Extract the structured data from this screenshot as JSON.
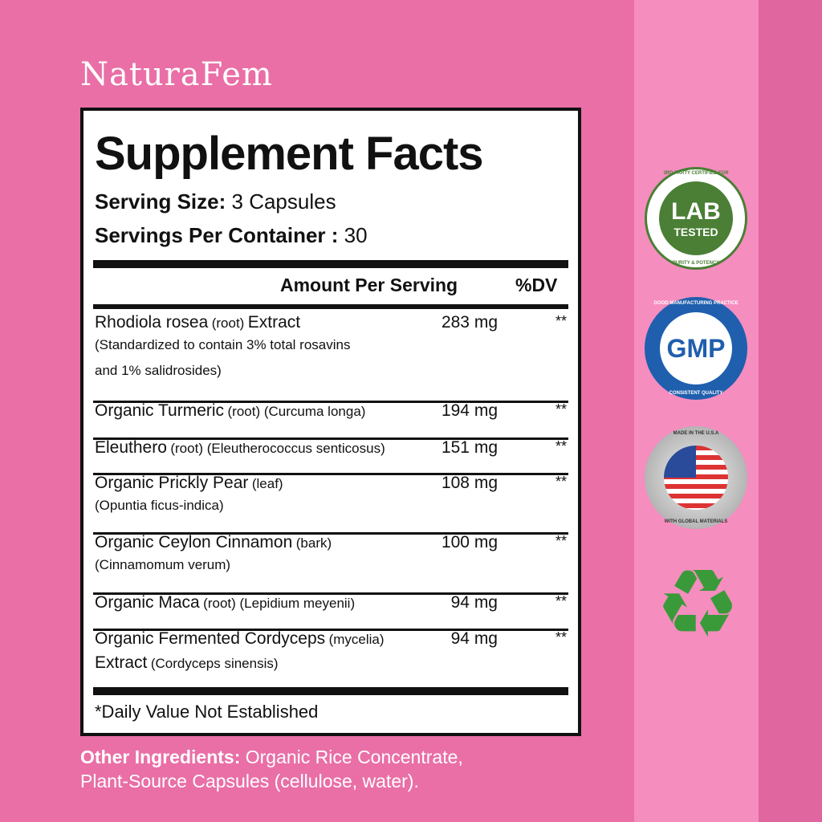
{
  "brand": "NaturaFem",
  "facts": {
    "title": "Supplement Facts",
    "serving_size_label": "Serving Size:",
    "serving_size": "3 Capsules",
    "servings_label": "Servings Per Container :",
    "servings": "30",
    "amount_header": "Amount Per Serving",
    "dv_header": "%DV",
    "rows": [
      {
        "name": "Rhodiola rosea",
        "qual": "(root)",
        "name2": "Extract",
        "sub": "(Standardized to contain 3% total rosavins",
        "sub2": "and 1% salidrosides)",
        "amount": "283 mg",
        "dv": "**"
      },
      {
        "name": "Organic Turmeric",
        "qual": "(root) (Curcuma longa)",
        "amount": "194 mg",
        "dv": "**"
      },
      {
        "name": "Eleuthero",
        "qual": "(root) (Eleutherococcus senticosus)",
        "amount": "151 mg",
        "dv": "**"
      },
      {
        "name": "Organic Prickly Pear",
        "qual": "(leaf)",
        "sub": "(Opuntia ficus-indica)",
        "amount": "108 mg",
        "dv": "**"
      },
      {
        "name": "Organic Ceylon Cinnamon",
        "qual": "(bark)",
        "sub": "(Cinnamomum verum)",
        "amount": "100 mg",
        "dv": "**"
      },
      {
        "name": "Organic Maca",
        "qual": "(root) (Lepidium meyenii)",
        "amount": "94 mg",
        "dv": "**"
      },
      {
        "name": "Organic Fermented Cordyceps",
        "qual": "(mycelia)",
        "name2": "Extract",
        "sub": "(Cordyceps sinensis)",
        "amount": "94 mg",
        "dv": "**"
      }
    ],
    "footnote": "*Daily Value Not Established"
  },
  "other": {
    "label": "Other Ingredients:",
    "text1": "Organic Rice Concentrate,",
    "text2": "Plant-Source Capsules (cellulose, water)."
  },
  "badges": {
    "lab": {
      "top": "3RD PARTY CERTIFIED FOR",
      "main": "LAB",
      "sub": "TESTED",
      "bottom": "PURITY & POTENCY"
    },
    "gmp": {
      "top": "GOOD MANUFACTURING PRACTICE",
      "main": "GMP",
      "bottom": "CONSISTENT QUALITY"
    },
    "usa": {
      "top": "MADE IN THE U.S.A",
      "bottom": "WITH GLOBAL MATERIALS"
    }
  },
  "colors": {
    "background": "#e96fa6",
    "strip": "#f58dbf",
    "lab_green": "#4a7f35",
    "gmp_blue": "#1f5fae"
  }
}
